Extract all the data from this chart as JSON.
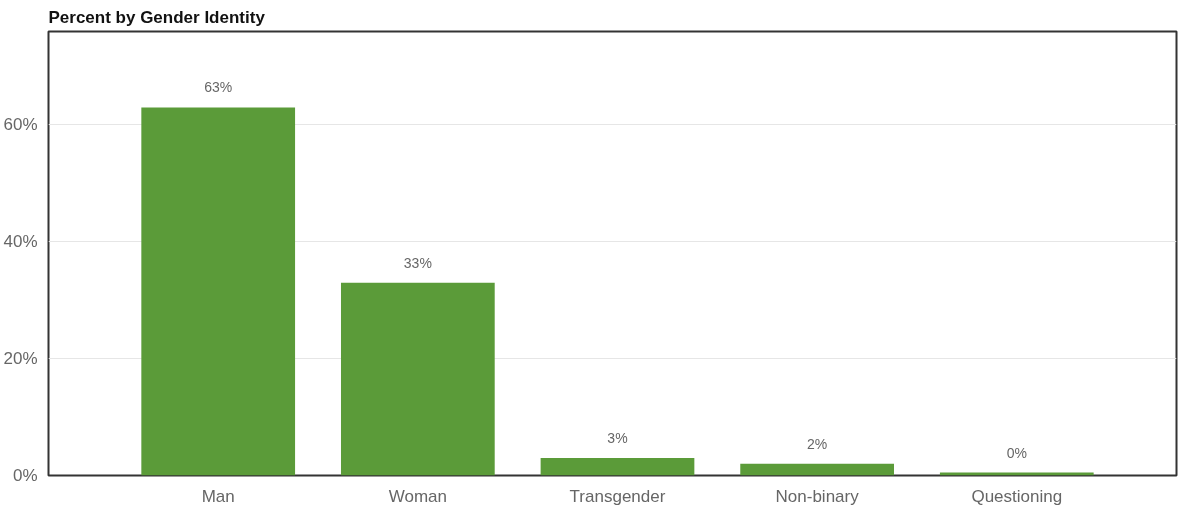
{
  "chart_data": {
    "type": "bar",
    "title": "Percent by Gender Identity",
    "categories": [
      "Man",
      "Woman",
      "Transgender",
      "Non-binary",
      "Questioning"
    ],
    "values": [
      63,
      33,
      3,
      2,
      0.5
    ],
    "value_labels": [
      "63%",
      "33%",
      "3%",
      "2%",
      "0%"
    ],
    "color": "#5b9b39",
    "ylim": [
      0,
      76
    ],
    "yticks": [
      {
        "value": 0,
        "label": "0%"
      },
      {
        "value": 20,
        "label": "20%"
      },
      {
        "value": 40,
        "label": "40%"
      },
      {
        "value": 60,
        "label": "60%"
      }
    ],
    "grid": "y"
  }
}
